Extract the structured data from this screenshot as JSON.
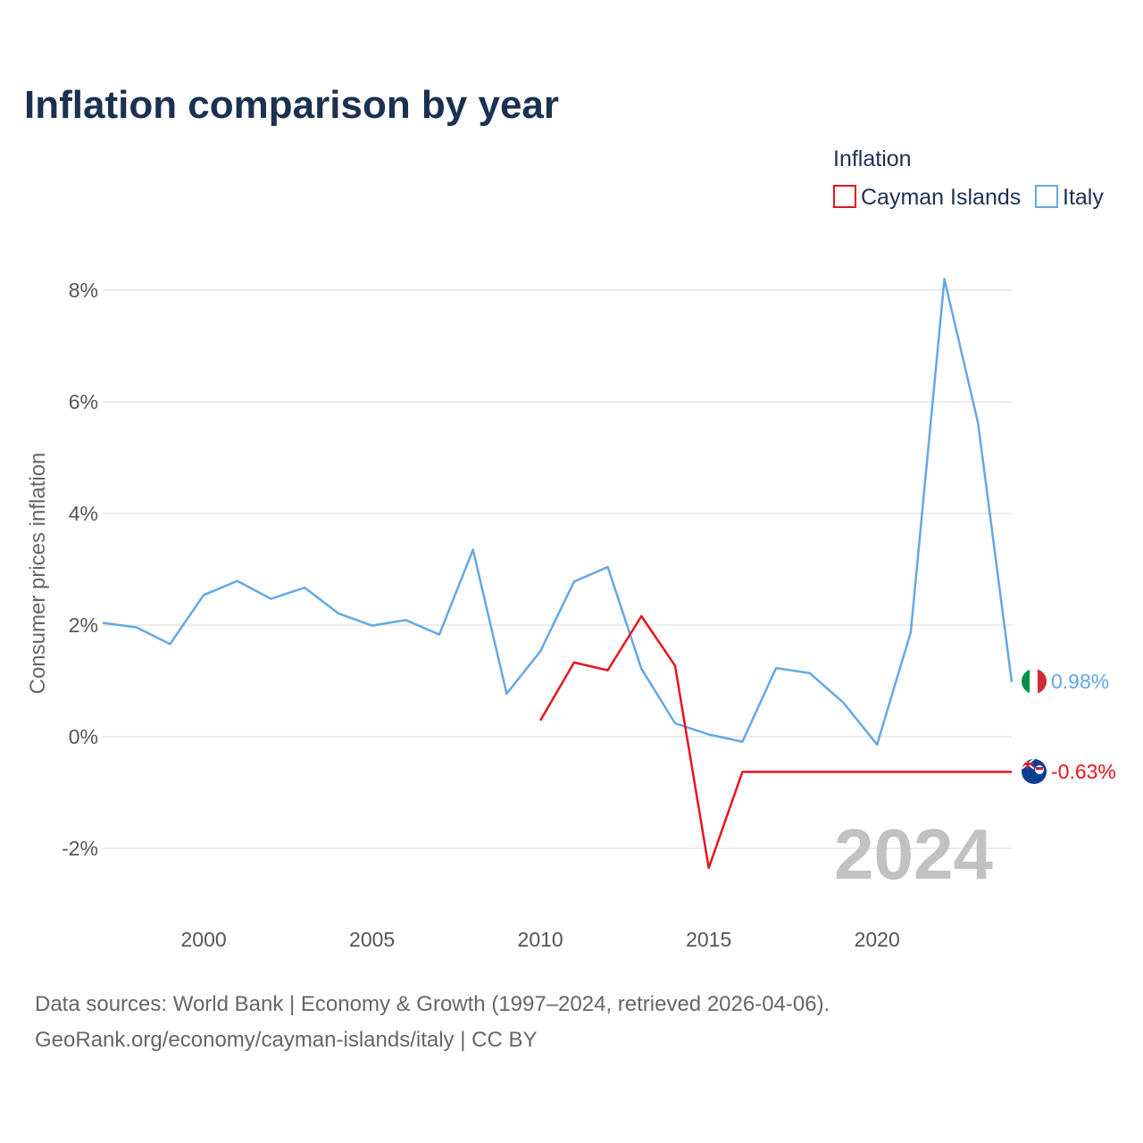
{
  "title": "Inflation comparison by year",
  "legend": {
    "title": "Inflation",
    "items": [
      {
        "name": "Cayman Islands",
        "color": "#e8141c"
      },
      {
        "name": "Italy",
        "color": "#63a8e6"
      }
    ]
  },
  "watermark_year": "2024",
  "footer": {
    "line1": "Data sources: World Bank | Economy & Growth (1997–2024, retrieved 2026-04-06).",
    "line2": "GeoRank.org/economy/cayman-islands/italy | CC BY"
  },
  "chart_data": {
    "type": "line",
    "title": "Inflation comparison by year",
    "xlabel": "",
    "ylabel": "Consumer prices inflation",
    "xlim": [
      1997,
      2024
    ],
    "ylim": [
      -2.9,
      8.6
    ],
    "x_ticks": [
      2000,
      2005,
      2010,
      2015,
      2020
    ],
    "x_tick_labels": [
      "2000",
      "2005",
      "2010",
      "2015",
      "2020"
    ],
    "y_ticks": [
      -2,
      0,
      2,
      4,
      6,
      8
    ],
    "y_tick_labels": [
      "-2%",
      "0%",
      "2%",
      "4%",
      "6%",
      "8%"
    ],
    "grid": true,
    "legend_position": "top-right",
    "series": [
      {
        "name": "Italy",
        "color": "#63a8e6",
        "end_label": "0.98%",
        "flag": "italy-flag-icon",
        "x": [
          1997,
          1998,
          1999,
          2000,
          2001,
          2002,
          2003,
          2004,
          2005,
          2006,
          2007,
          2008,
          2009,
          2010,
          2011,
          2012,
          2013,
          2014,
          2015,
          2016,
          2017,
          2018,
          2019,
          2020,
          2021,
          2022,
          2023,
          2024
        ],
        "values": [
          2.04,
          1.96,
          1.66,
          2.54,
          2.79,
          2.47,
          2.67,
          2.21,
          1.99,
          2.09,
          1.83,
          3.35,
          0.77,
          1.53,
          2.78,
          3.04,
          1.22,
          0.24,
          0.04,
          -0.09,
          1.23,
          1.14,
          0.61,
          -0.14,
          1.87,
          8.2,
          5.62,
          0.98
        ]
      },
      {
        "name": "Cayman Islands",
        "color": "#e8141c",
        "end_label": "-0.63%",
        "flag": "cayman-islands-flag-icon",
        "x": [
          2010,
          2011,
          2012,
          2013,
          2014,
          2015,
          2016,
          2024
        ],
        "values": [
          0.29,
          1.33,
          1.19,
          2.16,
          1.27,
          -2.35,
          -0.63,
          -0.63
        ]
      }
    ]
  }
}
